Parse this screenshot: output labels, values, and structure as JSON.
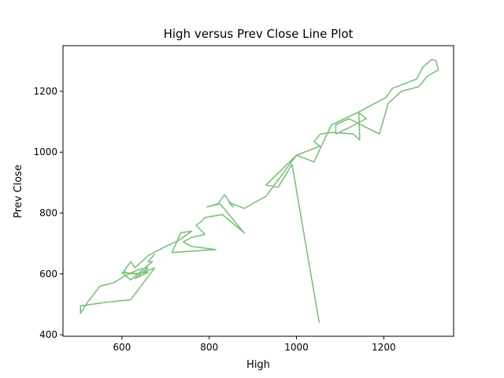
{
  "chart_data": {
    "type": "line",
    "title": "High versus Prev Close Line Plot",
    "xlabel": "High",
    "ylabel": "Prev Close",
    "xlim": [
      465,
      1360
    ],
    "ylim": [
      395,
      1350
    ],
    "xticks": [
      600,
      800,
      1000,
      1200
    ],
    "yticks": [
      400,
      600,
      800,
      1000,
      1200
    ],
    "grid": false,
    "legend": "none",
    "series": [
      {
        "color": "#7fbf7f",
        "points": [
          [
            1052,
            440
          ],
          [
            990,
            960
          ],
          [
            958,
            885
          ],
          [
            930,
            892
          ],
          [
            1000,
            990
          ],
          [
            1054,
            1020
          ],
          [
            1040,
            1035
          ],
          [
            1055,
            1060
          ],
          [
            1085,
            1065
          ],
          [
            1130,
            1060
          ],
          [
            1145,
            1040
          ],
          [
            1143,
            1130
          ],
          [
            1160,
            1110
          ],
          [
            1120,
            1080
          ],
          [
            1090,
            1060
          ],
          [
            1090,
            1090
          ],
          [
            1120,
            1110
          ],
          [
            1190,
            1060
          ],
          [
            1210,
            1160
          ],
          [
            1240,
            1200
          ],
          [
            1280,
            1215
          ],
          [
            1300,
            1250
          ],
          [
            1325,
            1270
          ],
          [
            1320,
            1300
          ],
          [
            1310,
            1305
          ],
          [
            1290,
            1280
          ],
          [
            1275,
            1240
          ],
          [
            1220,
            1210
          ],
          [
            1205,
            1180
          ],
          [
            1140,
            1130
          ],
          [
            1080,
            1090
          ],
          [
            1040,
            968
          ],
          [
            1000,
            990
          ],
          [
            930,
            855
          ],
          [
            880,
            815
          ],
          [
            845,
            835
          ],
          [
            855,
            820
          ],
          [
            835,
            860
          ],
          [
            820,
            830
          ],
          [
            795,
            820
          ],
          [
            825,
            830
          ],
          [
            880,
            735
          ],
          [
            830,
            795
          ],
          [
            790,
            785
          ],
          [
            780,
            770
          ],
          [
            770,
            760
          ],
          [
            790,
            730
          ],
          [
            760,
            720
          ],
          [
            740,
            705
          ],
          [
            760,
            690
          ],
          [
            815,
            680
          ],
          [
            715,
            670
          ],
          [
            735,
            735
          ],
          [
            760,
            740
          ],
          [
            730,
            710
          ],
          [
            700,
            690
          ],
          [
            660,
            660
          ],
          [
            630,
            620
          ],
          [
            620,
            640
          ],
          [
            605,
            610
          ],
          [
            615,
            600
          ],
          [
            640,
            615
          ],
          [
            660,
            620
          ],
          [
            630,
            585
          ],
          [
            660,
            605
          ],
          [
            615,
            600
          ],
          [
            580,
            570
          ],
          [
            550,
            560
          ],
          [
            520,
            505
          ],
          [
            505,
            470
          ],
          [
            505,
            495
          ],
          [
            555,
            505
          ],
          [
            620,
            515
          ],
          [
            675,
            620
          ],
          [
            640,
            600
          ],
          [
            600,
            605
          ],
          [
            620,
            580
          ],
          [
            670,
            640
          ],
          [
            660,
            640
          ],
          [
            675,
            665
          ]
        ]
      }
    ]
  }
}
